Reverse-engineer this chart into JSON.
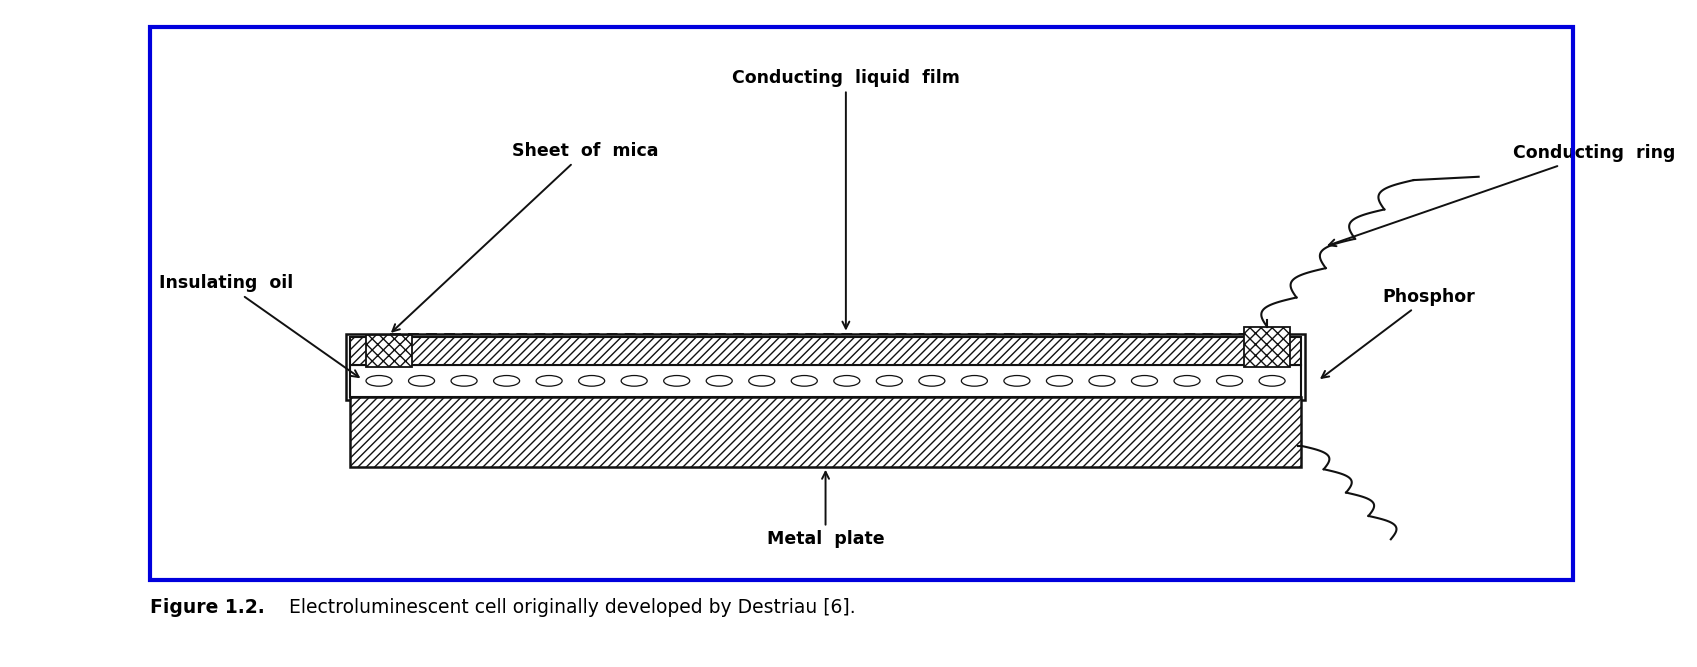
{
  "fig_width": 16.97,
  "fig_height": 6.67,
  "dpi": 100,
  "border_color": "#0000dd",
  "border_linewidth": 3.0,
  "bg_color": "#ffffff",
  "drawing_color": "#111111",
  "caption_bold": "Figure 1.2.",
  "caption_regular": "  Electroluminescent cell originally developed by Destriau [6].",
  "caption_fontsize": 13.5,
  "labels": {
    "conducting_liquid_film": "Conducting  liquid  film",
    "sheet_of_mica": "Sheet  of  mica",
    "insulating_oil": "Insulating  oil",
    "phosphor": "Phosphor",
    "conducting_ring": "Conducting  ring",
    "metal_plate": "Metal  plate"
  }
}
